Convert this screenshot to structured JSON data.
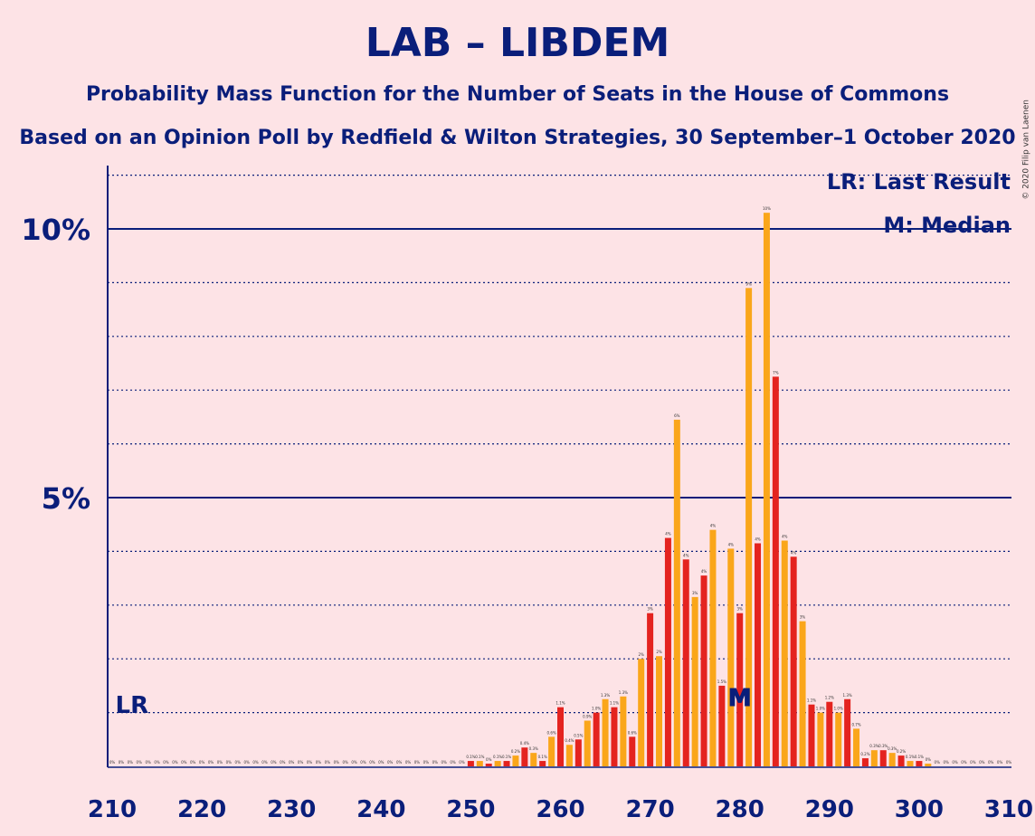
{
  "title": "LAB – LIBDEM",
  "subtitle": "Probability Mass Function for the Number of Seats in the House of Commons",
  "subtitle2": "Based on an Opinion Poll by Redfield & Wilton Strategies, 30 September–1 October 2020",
  "copyright": "© 2020 Filip van Laenen",
  "legend": {
    "last_result": "LR: Last Result",
    "median": "M: Median"
  },
  "markers": {
    "last_result": "LR",
    "median": "M"
  },
  "colors": {
    "background": "#FDE3E6",
    "axis": "#0A1E7A",
    "bar_red": "#E4231F",
    "bar_orange": "#FAA61A"
  },
  "chart_data": {
    "type": "bar",
    "title": "LAB – LIBDEM",
    "xlabel": "",
    "ylabel": "",
    "xlim": [
      210,
      310
    ],
    "ylim": [
      0,
      11.2
    ],
    "x_ticks": [
      "210",
      "220",
      "230",
      "240",
      "250",
      "260",
      "270",
      "280",
      "290",
      "300",
      "310"
    ],
    "y_ticks": [
      {
        "value": 5,
        "label": "5%"
      },
      {
        "value": 10,
        "label": "10%"
      }
    ],
    "grid": "dotted horizontal lines at every 1%, solid at 5% and 10%",
    "legend_position": "top-right",
    "last_result_seat": 212,
    "median_seat": 280,
    "x": [
      210,
      211,
      212,
      213,
      214,
      215,
      216,
      217,
      218,
      219,
      220,
      221,
      222,
      223,
      224,
      225,
      226,
      227,
      228,
      229,
      230,
      231,
      232,
      233,
      234,
      235,
      236,
      237,
      238,
      239,
      240,
      241,
      242,
      243,
      244,
      245,
      246,
      247,
      248,
      249,
      250,
      251,
      252,
      253,
      254,
      255,
      256,
      257,
      258,
      259,
      260,
      261,
      262,
      263,
      264,
      265,
      266,
      267,
      268,
      269,
      270,
      271,
      272,
      273,
      274,
      275,
      276,
      277,
      278,
      279,
      280,
      281,
      282,
      283,
      284,
      285,
      286,
      287,
      288,
      289,
      290,
      291,
      292,
      293,
      294,
      295,
      296,
      297,
      298,
      299,
      300,
      301,
      302,
      303,
      304,
      305,
      306,
      307,
      308,
      309,
      310
    ],
    "values": [
      0,
      0,
      0,
      0,
      0,
      0,
      0,
      0,
      0,
      0,
      0,
      0,
      0,
      0,
      0,
      0,
      0,
      0,
      0,
      0,
      0,
      0,
      0,
      0,
      0,
      0,
      0,
      0,
      0,
      0,
      0,
      0,
      0,
      0,
      0,
      0,
      0,
      0,
      0,
      0,
      0.1,
      0.1,
      0.05,
      0.1,
      0.1,
      0.2,
      0.35,
      0.25,
      0.1,
      0.55,
      1.1,
      0.4,
      0.5,
      0.85,
      1.0,
      1.25,
      1.1,
      1.3,
      0.55,
      2.0,
      2.85,
      2.05,
      4.25,
      6.45,
      3.85,
      3.15,
      3.55,
      4.4,
      1.5,
      4.05,
      2.85,
      8.9,
      4.15,
      10.3,
      7.25,
      4.2,
      3.9,
      2.7,
      1.15,
      1.0,
      1.2,
      1.0,
      1.25,
      0.7,
      0.15,
      0.3,
      0.3,
      0.25,
      0.2,
      0.1,
      0.1,
      0.05,
      0,
      0,
      0,
      0,
      0,
      0,
      0,
      0,
      0
    ],
    "value_labels": [
      "0%",
      "0%",
      "0%",
      "0%",
      "0%",
      "0%",
      "0%",
      "0%",
      "0%",
      "0%",
      "0%",
      "0%",
      "0%",
      "0%",
      "0%",
      "0%",
      "0%",
      "0%",
      "0%",
      "0%",
      "0%",
      "0%",
      "0%",
      "0%",
      "0%",
      "0%",
      "0%",
      "0%",
      "0%",
      "0%",
      "0%",
      "0%",
      "0%",
      "0%",
      "0%",
      "0%",
      "0%",
      "0%",
      "0%",
      "0%",
      "0.1%",
      "0.1%",
      "0%",
      "0.1%",
      "0.1%",
      "0.2%",
      "0.4%",
      "0.3%",
      "0.1%",
      "0.6%",
      "1.1%",
      "0.4%",
      "0.5%",
      "0.9%",
      "1.0%",
      "1.3%",
      "1.1%",
      "1.3%",
      "0.6%",
      "2%",
      "3%",
      "2%",
      "4%",
      "6%",
      "4%",
      "3%",
      "4%",
      "4%",
      "1.5%",
      "4%",
      "3%",
      "9%",
      "4%",
      "10%",
      "7%",
      "4%",
      "4%",
      "3%",
      "1.1%",
      "1.0%",
      "1.2%",
      "1.0%",
      "1.3%",
      "0.7%",
      "0.2%",
      "0.3%",
      "0.3%",
      "0.3%",
      "0.2%",
      "0.1%",
      "0.1%",
      "0%",
      "0%",
      "0%",
      "0%",
      "0%",
      "0%",
      "0%",
      "0%",
      "0%",
      "0%"
    ]
  }
}
